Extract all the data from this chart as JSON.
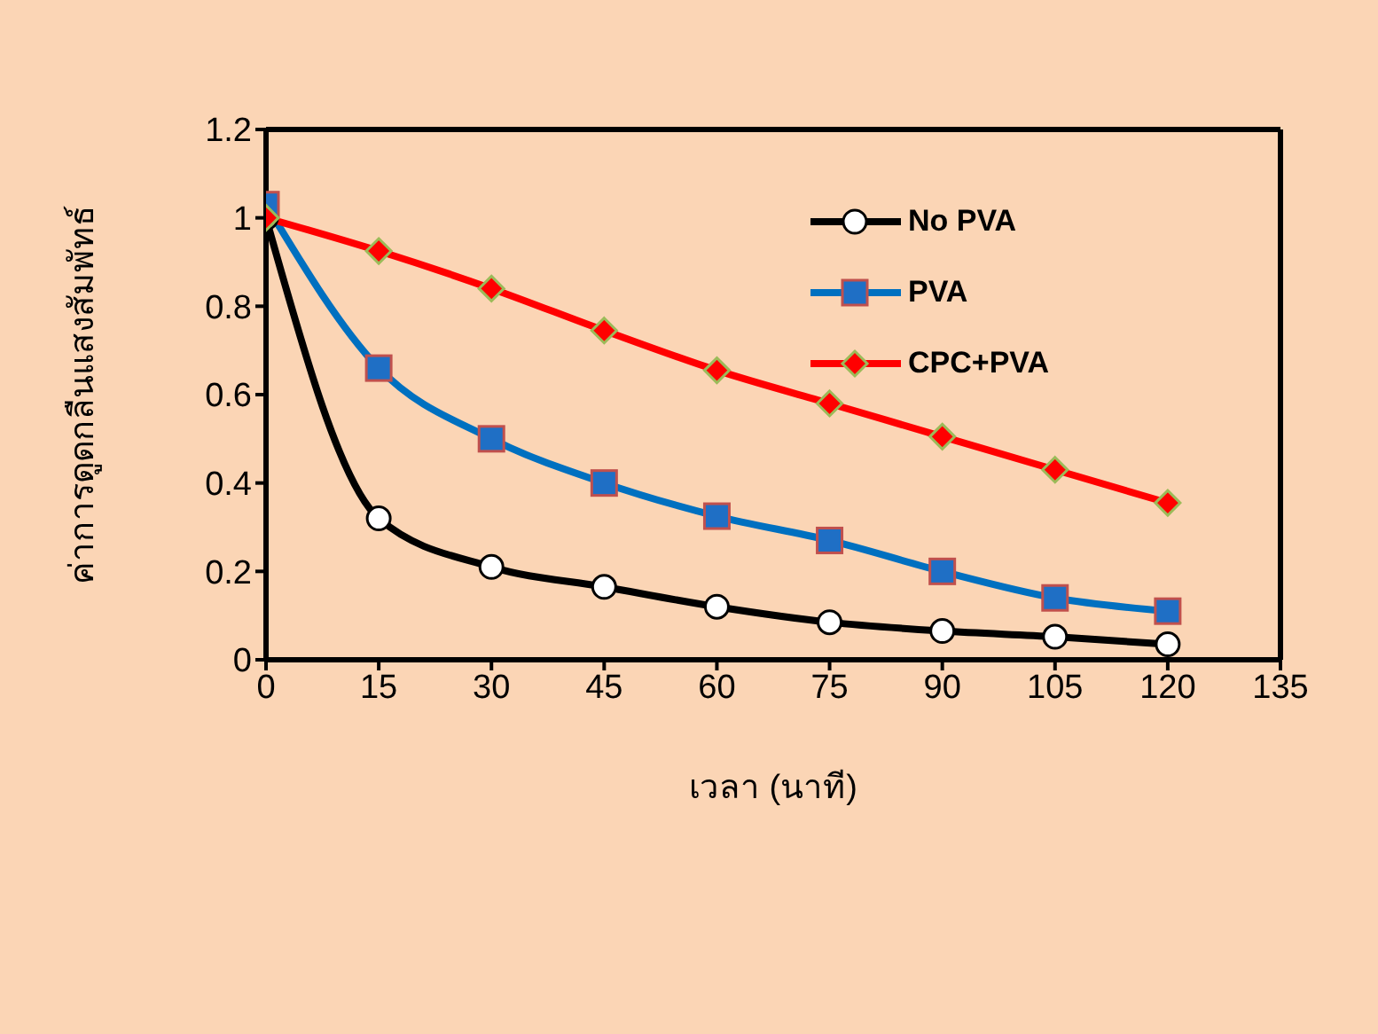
{
  "chart_data": {
    "type": "line",
    "xlabel": "เวลา (นาที)",
    "ylabel": "ค่าการดูดกลืนแสงสัมพัทธ์",
    "x": [
      0,
      15,
      30,
      45,
      60,
      75,
      90,
      105,
      120
    ],
    "series": [
      {
        "name": "No PVA",
        "color": "#000000",
        "marker": "circle",
        "values": [
          1.0,
          0.32,
          0.21,
          0.165,
          0.12,
          0.085,
          0.065,
          0.052,
          0.035
        ]
      },
      {
        "name": "PVA",
        "color": "#0070c0",
        "marker": "square",
        "values": [
          1.03,
          0.66,
          0.5,
          0.4,
          0.325,
          0.27,
          0.2,
          0.14,
          0.11
        ]
      },
      {
        "name": "CPC+PVA",
        "color": "#ff0000",
        "marker": "diamond",
        "values": [
          1.0,
          0.925,
          0.84,
          0.745,
          0.655,
          0.58,
          0.505,
          0.43,
          0.355
        ]
      }
    ],
    "xlim": [
      0,
      135
    ],
    "xticks": [
      0,
      15,
      30,
      45,
      60,
      75,
      90,
      105,
      120,
      135
    ],
    "ylim": [
      0,
      1.2
    ],
    "yticks": [
      0,
      0.2,
      0.4,
      0.6,
      0.8,
      1,
      1.2
    ],
    "grid": false,
    "legend": "top right",
    "line_style": "solid"
  }
}
